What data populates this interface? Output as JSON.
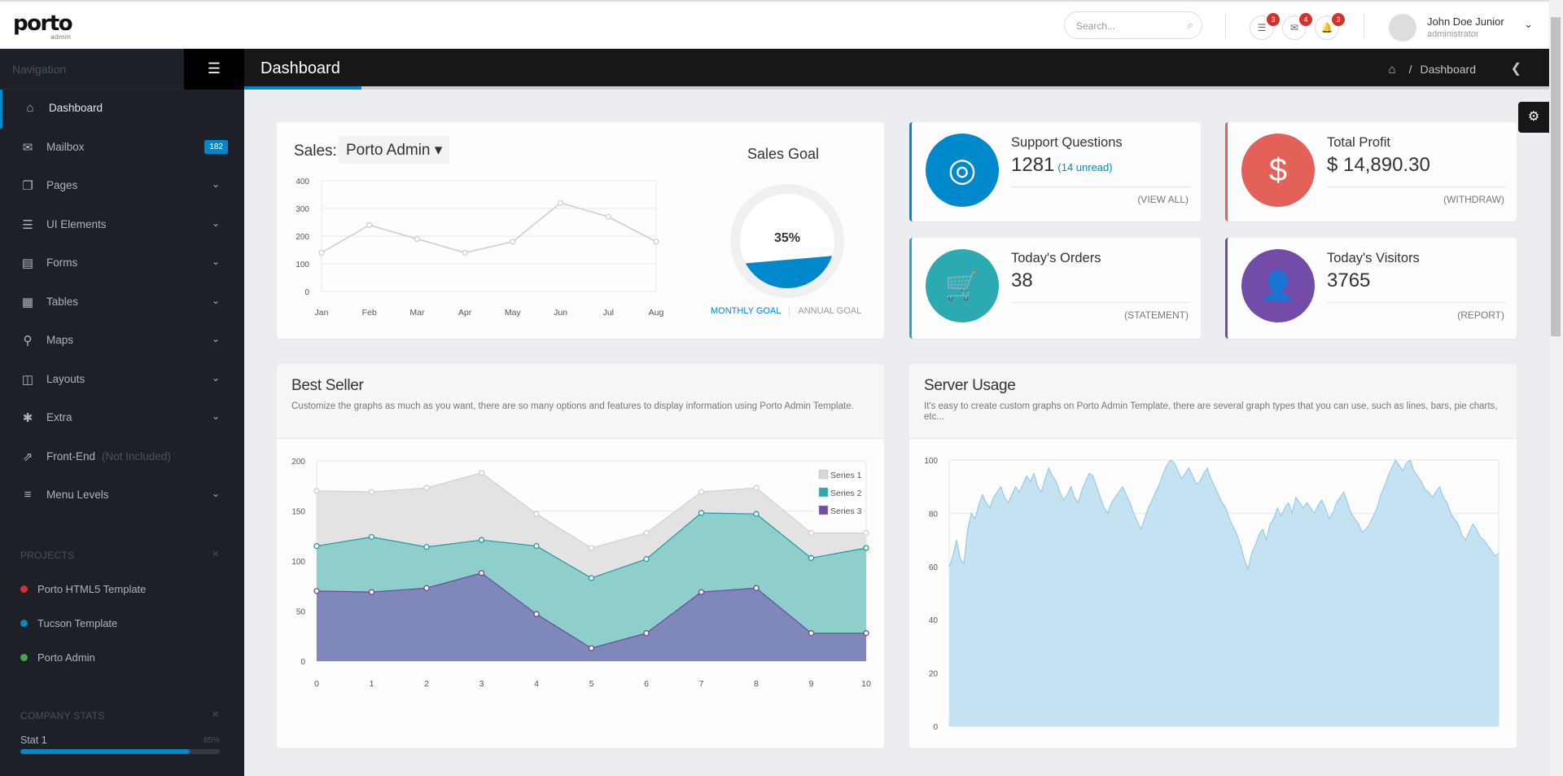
{
  "brand": {
    "name": "porto",
    "sub": "admin"
  },
  "header": {
    "search_placeholder": "Search...",
    "notifications": [
      {
        "icon": "tasks-icon",
        "count": "3"
      },
      {
        "icon": "envelope-icon",
        "count": "4"
      },
      {
        "icon": "bell-icon",
        "count": "3"
      }
    ],
    "user": {
      "name": "John Doe Junior",
      "role": "administrator"
    }
  },
  "sidebar": {
    "title": "Navigation",
    "items": [
      {
        "label": "Dashboard",
        "icon": "home-icon",
        "active": true
      },
      {
        "label": "Mailbox",
        "icon": "envelope-icon",
        "badge": "182"
      },
      {
        "label": "Pages",
        "icon": "copy-icon",
        "chevron": true
      },
      {
        "label": "UI Elements",
        "icon": "tasks-icon",
        "chevron": true
      },
      {
        "label": "Forms",
        "icon": "list-alt-icon",
        "chevron": true
      },
      {
        "label": "Tables",
        "icon": "table-icon",
        "chevron": true
      },
      {
        "label": "Maps",
        "icon": "map-marker-icon",
        "chevron": true
      },
      {
        "label": "Layouts",
        "icon": "columns-icon",
        "chevron": true
      },
      {
        "label": "Extra",
        "icon": "asterisk-icon",
        "chevron": true
      },
      {
        "label": "Front-End",
        "icon": "external-link-icon",
        "sub": "(Not Included)"
      },
      {
        "label": "Menu Levels",
        "icon": "align-left-icon",
        "chevron": true
      }
    ],
    "projects_title": "PROJECTS",
    "projects": [
      {
        "label": "Porto HTML5 Template",
        "color": "#d2322d"
      },
      {
        "label": "Tucson Template",
        "color": "#0088cc"
      },
      {
        "label": "Porto Admin",
        "color": "#47a447"
      }
    ],
    "stats_title": "COMPANY STATS",
    "stats": [
      {
        "label": "Stat 1",
        "pct": "85%",
        "value": 0.85
      }
    ]
  },
  "page": {
    "title": "Dashboard",
    "breadcrumb": "Dashboard"
  },
  "sales": {
    "label": "Sales:",
    "selected": "Porto Admin",
    "goal_title": "Sales Goal",
    "goal_pct": "35%",
    "goal_value": 0.35,
    "tab_monthly": "MONTHLY GOAL",
    "tab_annual": "ANNUAL GOAL"
  },
  "widgets": [
    {
      "title": "Support Questions",
      "value": "1281",
      "extra": "(14 unread)",
      "link": "(VIEW ALL)",
      "color": "#0088cc",
      "icon": "life-ring-icon",
      "glyph": "◎"
    },
    {
      "title": "Total Profit",
      "value": "$ 14,890.30",
      "extra": "",
      "link": "(WITHDRAW)",
      "color": "#e36159",
      "icon": "dollar-icon",
      "glyph": "$"
    },
    {
      "title": "Today's Orders",
      "value": "38",
      "extra": "",
      "link": "(STATEMENT)",
      "color": "#2baab1",
      "icon": "shopping-cart-icon",
      "glyph": "🛒"
    },
    {
      "title": "Today's Visitors",
      "value": "3765",
      "extra": "",
      "link": "(REPORT)",
      "color": "#734ba9",
      "icon": "user-icon",
      "glyph": "👤"
    }
  ],
  "best_seller": {
    "title": "Best Seller",
    "description": "Customize the graphs as much as you want, there are so many options and features to display information using Porto Admin Template."
  },
  "server_usage": {
    "title": "Server Usage",
    "description": "It's easy to create custom graphs on Porto Admin Template, there are several graph types that you can use, such as lines, bars, pie charts, etc..."
  },
  "chart_data": [
    {
      "type": "line",
      "categories": [
        "Jan",
        "Feb",
        "Mar",
        "Apr",
        "May",
        "Jun",
        "Jul",
        "Aug"
      ],
      "values": [
        140,
        240,
        190,
        140,
        180,
        320,
        270,
        180
      ],
      "ylim": [
        0,
        400
      ],
      "yticks": [
        0,
        100,
        200,
        300,
        400
      ],
      "color": "#cccccc"
    },
    {
      "type": "area",
      "x": [
        0,
        1,
        2,
        3,
        4,
        5,
        6,
        7,
        8,
        9,
        10
      ],
      "ylim": [
        0,
        200
      ],
      "yticks": [
        0,
        50,
        100,
        150,
        200
      ],
      "legend": "top-right",
      "series": [
        {
          "name": "Series 1",
          "values": [
            170,
            169,
            173,
            188,
            147,
            113,
            128,
            169,
            173,
            128,
            128
          ],
          "color": "#e4e4e4"
        },
        {
          "name": "Series 2",
          "values": [
            115,
            124,
            114,
            121,
            115,
            83,
            102,
            148,
            147,
            103,
            113
          ],
          "color": "#2baab1"
        },
        {
          "name": "Series 3",
          "values": [
            70,
            69,
            73,
            88,
            47,
            13,
            28,
            69,
            73,
            28,
            28
          ],
          "color": "#734ba9"
        }
      ]
    },
    {
      "type": "area",
      "xlim": [
        0,
        250
      ],
      "ylim": [
        0,
        100
      ],
      "yticks": [
        0,
        20,
        40,
        60,
        80,
        100
      ],
      "color": "#0088cc",
      "values": [
        60,
        64,
        70,
        63,
        61,
        74,
        80,
        78,
        83,
        87,
        84,
        82,
        86,
        88,
        90,
        86,
        84,
        87,
        90,
        88,
        91,
        94,
        92,
        95,
        90,
        88,
        93,
        97,
        94,
        92,
        88,
        85,
        87,
        90,
        86,
        84,
        89,
        92,
        95,
        94,
        90,
        86,
        82,
        80,
        84,
        86,
        88,
        90,
        87,
        84,
        80,
        77,
        74,
        78,
        82,
        85,
        88,
        91,
        95,
        98,
        100,
        99,
        96,
        93,
        95,
        97,
        94,
        91,
        92,
        95,
        97,
        93,
        90,
        87,
        84,
        82,
        78,
        75,
        72,
        68,
        63,
        59,
        65,
        68,
        72,
        74,
        70,
        76,
        78,
        82,
        79,
        82,
        84,
        80,
        86,
        84,
        82,
        84,
        82,
        80,
        83,
        85,
        82,
        78,
        80,
        84,
        86,
        88,
        84,
        80,
        78,
        76,
        73,
        74,
        76,
        79,
        82,
        87,
        90,
        94,
        97,
        100,
        98,
        96,
        99,
        100,
        96,
        94,
        92,
        89,
        88,
        86,
        88,
        90,
        86,
        84,
        80,
        78,
        76,
        72,
        70,
        73,
        76,
        74,
        71,
        70,
        68,
        66,
        64,
        65
      ]
    }
  ]
}
